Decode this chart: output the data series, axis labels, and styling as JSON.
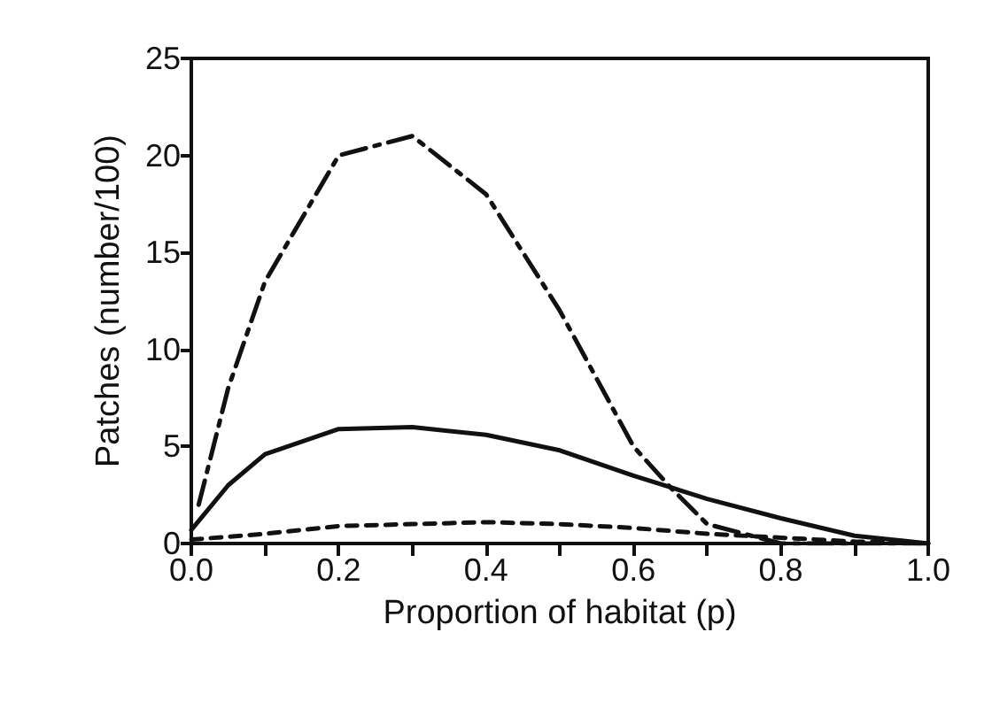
{
  "chart_data": {
    "type": "line",
    "xlabel": "Proportion of habitat (p)",
    "ylabel": "Patches (number/100)",
    "xlim": [
      0,
      1
    ],
    "ylim": [
      0,
      25
    ],
    "xticks": [
      {
        "value": 0,
        "label": "0.0"
      },
      {
        "value": 0.1,
        "label": null
      },
      {
        "value": 0.2,
        "label": "0.2"
      },
      {
        "value": 0.3,
        "label": null
      },
      {
        "value": 0.4,
        "label": "0.4"
      },
      {
        "value": 0.5,
        "label": null
      },
      {
        "value": 0.6,
        "label": "0.6"
      },
      {
        "value": 0.7,
        "label": null
      },
      {
        "value": 0.8,
        "label": "0.8"
      },
      {
        "value": 0.9,
        "label": null
      },
      {
        "value": 1,
        "label": "1.0"
      }
    ],
    "yticks": [
      0,
      5,
      10,
      15,
      20,
      25
    ],
    "grid": false,
    "marker": "none",
    "series": [
      {
        "color": "#111111",
        "line_style": "dashdot",
        "x": [
          0.01,
          0.05,
          0.1,
          0.2,
          0.3,
          0.4,
          0.5,
          0.6,
          0.65,
          0.7,
          0.8,
          0.9,
          1.0
        ],
        "values": [
          2,
          8,
          13.5,
          20,
          21,
          18,
          12,
          5,
          2.9,
          1,
          0,
          0,
          0
        ]
      },
      {
        "color": "#111111",
        "line_style": "solid",
        "x": [
          0,
          0.05,
          0.1,
          0.2,
          0.3,
          0.4,
          0.5,
          0.6,
          0.7,
          0.8,
          0.9,
          1.0
        ],
        "values": [
          0.7,
          3,
          4.6,
          5.9,
          6,
          5.6,
          4.8,
          3.5,
          2.3,
          1.3,
          0.4,
          0
        ]
      },
      {
        "color": "#111111",
        "line_style": "dashed",
        "x": [
          0,
          0.1,
          0.2,
          0.3,
          0.4,
          0.5,
          0.6,
          0.7,
          0.8,
          0.9,
          1.0
        ],
        "values": [
          0.2,
          0.5,
          0.9,
          1,
          1.1,
          1,
          0.8,
          0.5,
          0.3,
          0.1,
          0
        ]
      }
    ]
  }
}
